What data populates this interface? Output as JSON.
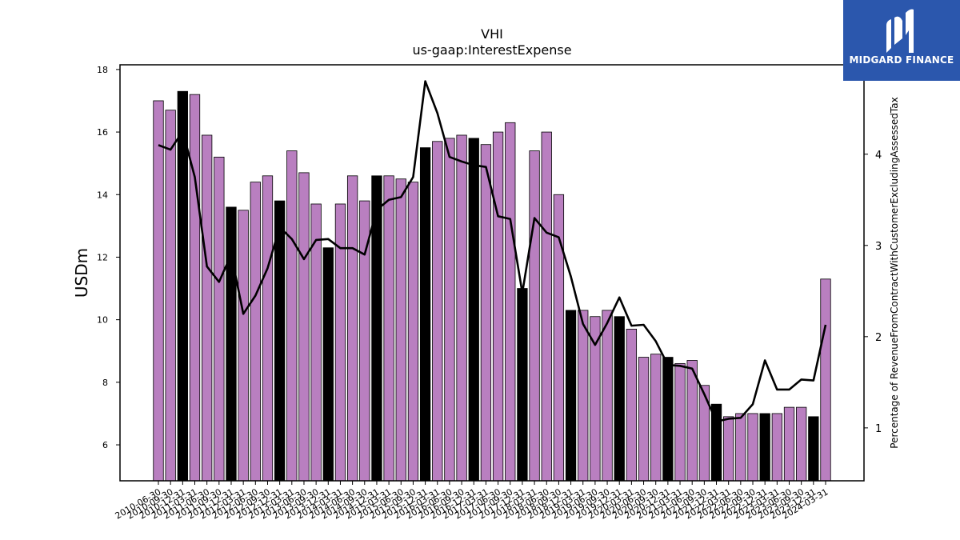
{
  "chart_data": {
    "type": "bar",
    "title": "VHI",
    "subtitle": "us-gaap:InterestExpense",
    "ylabel": "USDm",
    "y2label": "Percentage of RevenueFromContractWithCustomerExcludingAssessedTax",
    "ylim": [
      4.85,
      18.15
    ],
    "y2lim": [
      0.42,
      4.98
    ],
    "yticks": [
      6,
      8,
      10,
      12,
      14,
      16,
      18
    ],
    "y2ticks": [
      1,
      2,
      3,
      4
    ],
    "grid": false,
    "categories": [
      "2010-06-30",
      "2010-09-30",
      "2010-12-31",
      "2011-03-31",
      "2011-06-30",
      "2011-09-30",
      "2011-12-31",
      "2012-03-31",
      "2012-06-30",
      "2012-09-30",
      "2012-12-31",
      "2013-03-31",
      "2013-06-30",
      "2013-09-30",
      "2013-12-31",
      "2014-03-31",
      "2014-06-30",
      "2014-09-30",
      "2014-12-31",
      "2015-03-31",
      "2015-06-30",
      "2015-09-30",
      "2015-12-31",
      "2016-03-31",
      "2016-06-30",
      "2016-09-30",
      "2016-12-31",
      "2017-03-31",
      "2017-06-30",
      "2017-09-30",
      "2017-12-31",
      "2018-03-31",
      "2018-06-30",
      "2018-09-30",
      "2018-12-31",
      "2019-03-31",
      "2019-06-30",
      "2019-09-30",
      "2019-12-31",
      "2020-03-31",
      "2020-06-30",
      "2020-09-30",
      "2020-12-31",
      "2021-03-31",
      "2021-06-30",
      "2021-09-30",
      "2021-12-31",
      "2022-03-31",
      "2022-06-30",
      "2022-09-30",
      "2022-12-31",
      "2023-03-31",
      "2023-06-30",
      "2023-09-30",
      "2023-12-31",
      "2024-03-31"
    ],
    "series": [
      {
        "kind": "bar",
        "axis": "left",
        "values": [
          17.0,
          16.7,
          17.3,
          17.2,
          15.9,
          15.2,
          13.6,
          13.5,
          14.4,
          14.6,
          13.8,
          15.4,
          14.7,
          13.7,
          12.3,
          13.7,
          14.6,
          13.8,
          14.6,
          14.6,
          14.5,
          14.4,
          15.5,
          15.7,
          15.8,
          15.9,
          15.8,
          15.6,
          16.0,
          16.3,
          11.0,
          15.4,
          16.0,
          14.0,
          10.3,
          10.3,
          10.1,
          10.3,
          10.1,
          9.7,
          8.8,
          8.9,
          8.8,
          8.6,
          8.7,
          7.9,
          7.3,
          6.9,
          7.0,
          7.0,
          7.0,
          7.0,
          7.2,
          7.2,
          6.9,
          11.3
        ],
        "highlight": [
          false,
          false,
          true,
          false,
          false,
          false,
          true,
          false,
          false,
          false,
          true,
          false,
          false,
          false,
          true,
          false,
          false,
          false,
          true,
          false,
          false,
          false,
          true,
          false,
          false,
          false,
          true,
          false,
          false,
          false,
          true,
          false,
          false,
          false,
          true,
          false,
          false,
          false,
          true,
          false,
          false,
          false,
          true,
          false,
          false,
          false,
          true,
          false,
          false,
          false,
          true,
          false,
          false,
          false,
          true,
          false
        ]
      },
      {
        "kind": "line",
        "axis": "right",
        "values": [
          4.1,
          4.05,
          4.25,
          3.75,
          2.77,
          2.6,
          2.9,
          2.25,
          2.45,
          2.75,
          3.2,
          3.07,
          2.85,
          3.06,
          3.07,
          2.97,
          2.97,
          2.9,
          3.39,
          3.5,
          3.53,
          3.75,
          4.8,
          4.45,
          3.97,
          3.92,
          3.88,
          3.86,
          3.32,
          3.29,
          2.48,
          3.3,
          3.14,
          3.09,
          2.66,
          2.14,
          1.91,
          2.15,
          2.43,
          2.12,
          2.13,
          1.95,
          1.69,
          1.68,
          1.65,
          1.37,
          1.07,
          1.1,
          1.11,
          1.26,
          1.74,
          1.42,
          1.42,
          1.53,
          1.52,
          2.13
        ]
      }
    ],
    "colors": {
      "bar_fill": "#b97fc0",
      "bar_highlight": "#000000",
      "bar_edge": "#000000",
      "line": "#000000"
    }
  },
  "logo": {
    "text": "MIDGARD FINANCE",
    "icon": "midgard-m-logo-icon",
    "bg_color": "#2b57ad"
  }
}
